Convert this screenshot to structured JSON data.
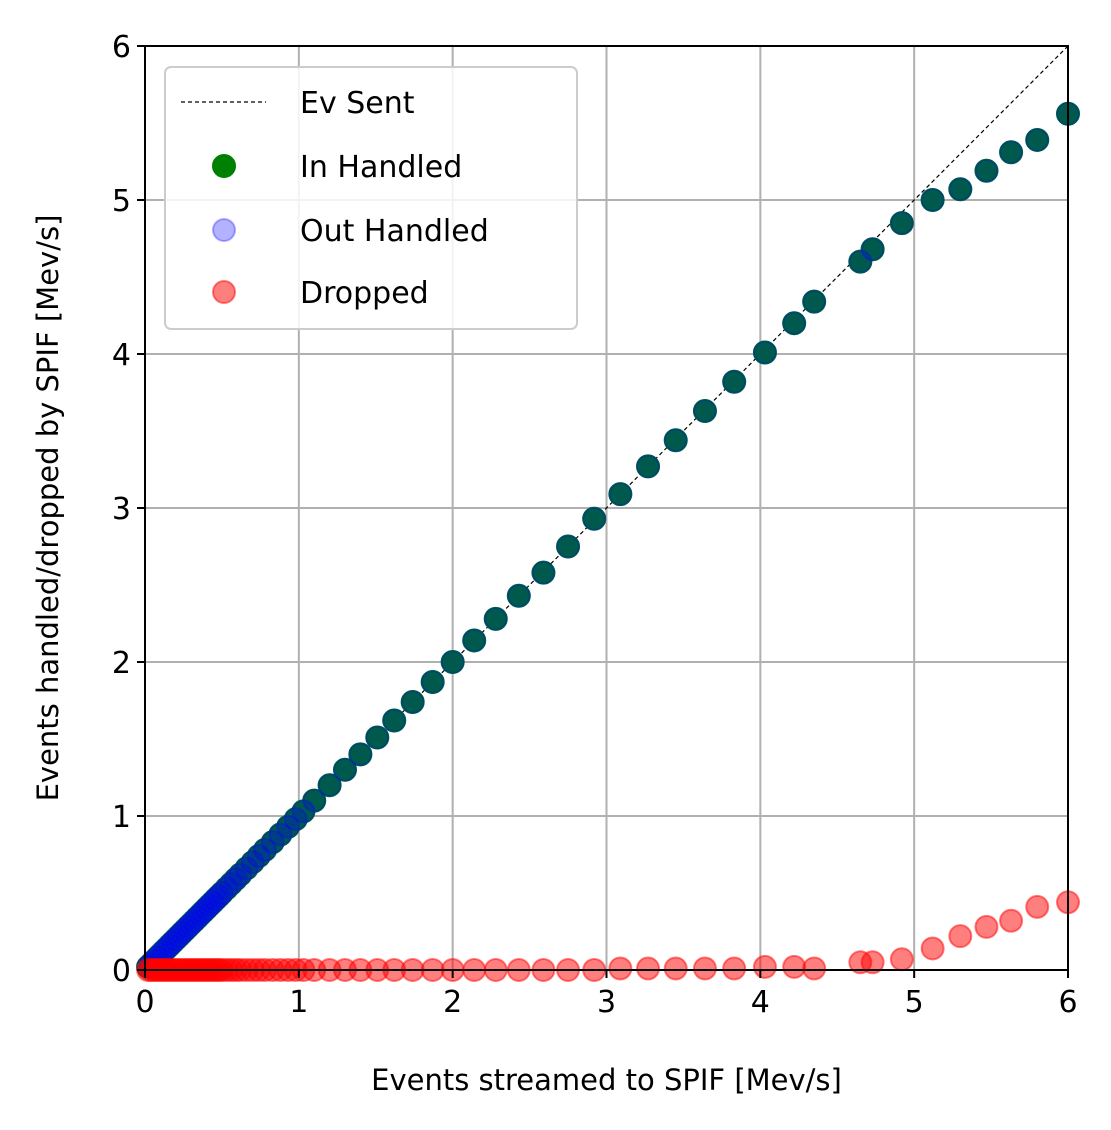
{
  "chart_data": {
    "type": "scatter",
    "xlabel": "Events streamed to SPIF [Mev/s]",
    "ylabel": "Events handled/dropped by SPIF [Mev/s]",
    "xlim": [
      0,
      6
    ],
    "ylim": [
      0,
      6
    ],
    "xticks": [
      "0",
      "1",
      "2",
      "3",
      "4",
      "5",
      "6"
    ],
    "yticks": [
      "0",
      "1",
      "2",
      "3",
      "4",
      "5",
      "6"
    ],
    "grid": true,
    "legend_position": "upper-left",
    "reference_line": {
      "name": "Ev Sent",
      "color": "#000000",
      "style": "dashed",
      "x": [
        0,
        6
      ],
      "y": [
        0,
        6
      ]
    },
    "series": [
      {
        "name": "In Handled",
        "color": "#008000",
        "x": [
          0.02,
          0.04,
          0.06,
          0.08,
          0.1,
          0.12,
          0.14,
          0.16,
          0.18,
          0.2,
          0.22,
          0.24,
          0.26,
          0.28,
          0.3,
          0.32,
          0.34,
          0.36,
          0.38,
          0.4,
          0.42,
          0.44,
          0.46,
          0.48,
          0.5,
          0.53,
          0.56,
          0.59,
          0.62,
          0.66,
          0.7,
          0.74,
          0.78,
          0.83,
          0.88,
          0.93,
          0.98,
          1.03,
          1.1,
          1.2,
          1.3,
          1.4,
          1.51,
          1.62,
          1.74,
          1.87,
          2.0,
          2.14,
          2.28,
          2.43,
          2.59,
          2.75,
          2.92,
          3.09,
          3.27,
          3.45,
          3.64,
          3.83,
          4.03,
          4.22,
          4.35,
          4.65,
          4.73,
          4.92,
          5.12,
          5.3,
          5.47,
          5.63,
          5.8,
          6.0
        ],
        "y": [
          0.02,
          0.04,
          0.06,
          0.08,
          0.1,
          0.12,
          0.14,
          0.16,
          0.18,
          0.2,
          0.22,
          0.24,
          0.26,
          0.28,
          0.3,
          0.32,
          0.34,
          0.36,
          0.38,
          0.4,
          0.42,
          0.44,
          0.46,
          0.48,
          0.5,
          0.53,
          0.56,
          0.59,
          0.62,
          0.66,
          0.7,
          0.74,
          0.78,
          0.83,
          0.88,
          0.93,
          0.98,
          1.03,
          1.1,
          1.2,
          1.3,
          1.4,
          1.51,
          1.62,
          1.74,
          1.87,
          2.0,
          2.14,
          2.28,
          2.43,
          2.58,
          2.75,
          2.93,
          3.09,
          3.27,
          3.44,
          3.63,
          3.82,
          4.01,
          4.2,
          4.34,
          4.6,
          4.68,
          4.85,
          5.0,
          5.07,
          5.19,
          5.31,
          5.39,
          5.56
        ]
      },
      {
        "name": "Out Handled",
        "color": "#0000ff",
        "x": [
          0.02,
          0.04,
          0.06,
          0.08,
          0.1,
          0.12,
          0.14,
          0.16,
          0.18,
          0.2,
          0.22,
          0.24,
          0.26,
          0.28,
          0.3,
          0.32,
          0.34,
          0.36,
          0.38,
          0.4,
          0.42,
          0.44,
          0.46,
          0.48,
          0.5,
          0.53,
          0.56,
          0.59,
          0.62,
          0.66,
          0.7,
          0.74,
          0.78,
          0.83,
          0.88,
          0.93,
          0.98,
          1.03,
          1.1,
          1.2,
          1.3,
          1.4,
          1.51,
          1.62,
          1.74,
          1.87,
          2.0,
          2.14,
          2.28,
          2.43,
          2.59,
          2.75,
          2.92,
          3.09,
          3.27,
          3.45,
          3.64,
          3.83,
          4.03,
          4.22,
          4.35,
          4.65,
          4.73,
          4.92,
          5.12,
          5.3,
          5.47,
          5.63,
          5.8,
          6.0
        ],
        "y": [
          0.02,
          0.04,
          0.06,
          0.08,
          0.1,
          0.12,
          0.14,
          0.16,
          0.18,
          0.2,
          0.22,
          0.24,
          0.26,
          0.28,
          0.3,
          0.32,
          0.34,
          0.36,
          0.38,
          0.4,
          0.42,
          0.44,
          0.46,
          0.48,
          0.5,
          0.53,
          0.56,
          0.59,
          0.62,
          0.66,
          0.7,
          0.74,
          0.78,
          0.83,
          0.88,
          0.93,
          0.98,
          1.03,
          1.1,
          1.2,
          1.3,
          1.4,
          1.51,
          1.62,
          1.74,
          1.87,
          2.0,
          2.14,
          2.28,
          2.43,
          2.58,
          2.75,
          2.93,
          3.09,
          3.27,
          3.44,
          3.63,
          3.82,
          4.01,
          4.2,
          4.34,
          4.6,
          4.68,
          4.85,
          5.0,
          5.07,
          5.19,
          5.31,
          5.39,
          5.56
        ]
      },
      {
        "name": "Dropped",
        "color": "#ff0000",
        "x": [
          0.02,
          0.04,
          0.06,
          0.08,
          0.1,
          0.12,
          0.14,
          0.16,
          0.18,
          0.2,
          0.22,
          0.24,
          0.26,
          0.28,
          0.3,
          0.32,
          0.34,
          0.36,
          0.38,
          0.4,
          0.42,
          0.44,
          0.46,
          0.48,
          0.5,
          0.53,
          0.56,
          0.59,
          0.62,
          0.66,
          0.7,
          0.74,
          0.78,
          0.83,
          0.88,
          0.93,
          0.98,
          1.03,
          1.1,
          1.2,
          1.3,
          1.4,
          1.51,
          1.62,
          1.74,
          1.87,
          2.0,
          2.14,
          2.28,
          2.43,
          2.59,
          2.75,
          2.92,
          3.09,
          3.27,
          3.45,
          3.64,
          3.83,
          4.03,
          4.22,
          4.35,
          4.65,
          4.73,
          4.92,
          5.12,
          5.3,
          5.47,
          5.63,
          5.8,
          6.0
        ],
        "y": [
          0,
          0,
          0,
          0,
          0,
          0,
          0,
          0,
          0,
          0,
          0,
          0,
          0,
          0,
          0,
          0,
          0,
          0,
          0,
          0,
          0,
          0,
          0,
          0,
          0,
          0,
          0,
          0,
          0,
          0,
          0,
          0,
          0,
          0,
          0,
          0,
          0,
          0,
          0,
          0,
          0,
          0,
          0,
          0,
          0,
          0,
          0,
          0,
          0,
          0,
          0,
          0,
          0,
          0.01,
          0.01,
          0.01,
          0.01,
          0.01,
          0.02,
          0.02,
          0.01,
          0.05,
          0.05,
          0.07,
          0.14,
          0.22,
          0.28,
          0.32,
          0.41,
          0.44
        ]
      }
    ]
  }
}
